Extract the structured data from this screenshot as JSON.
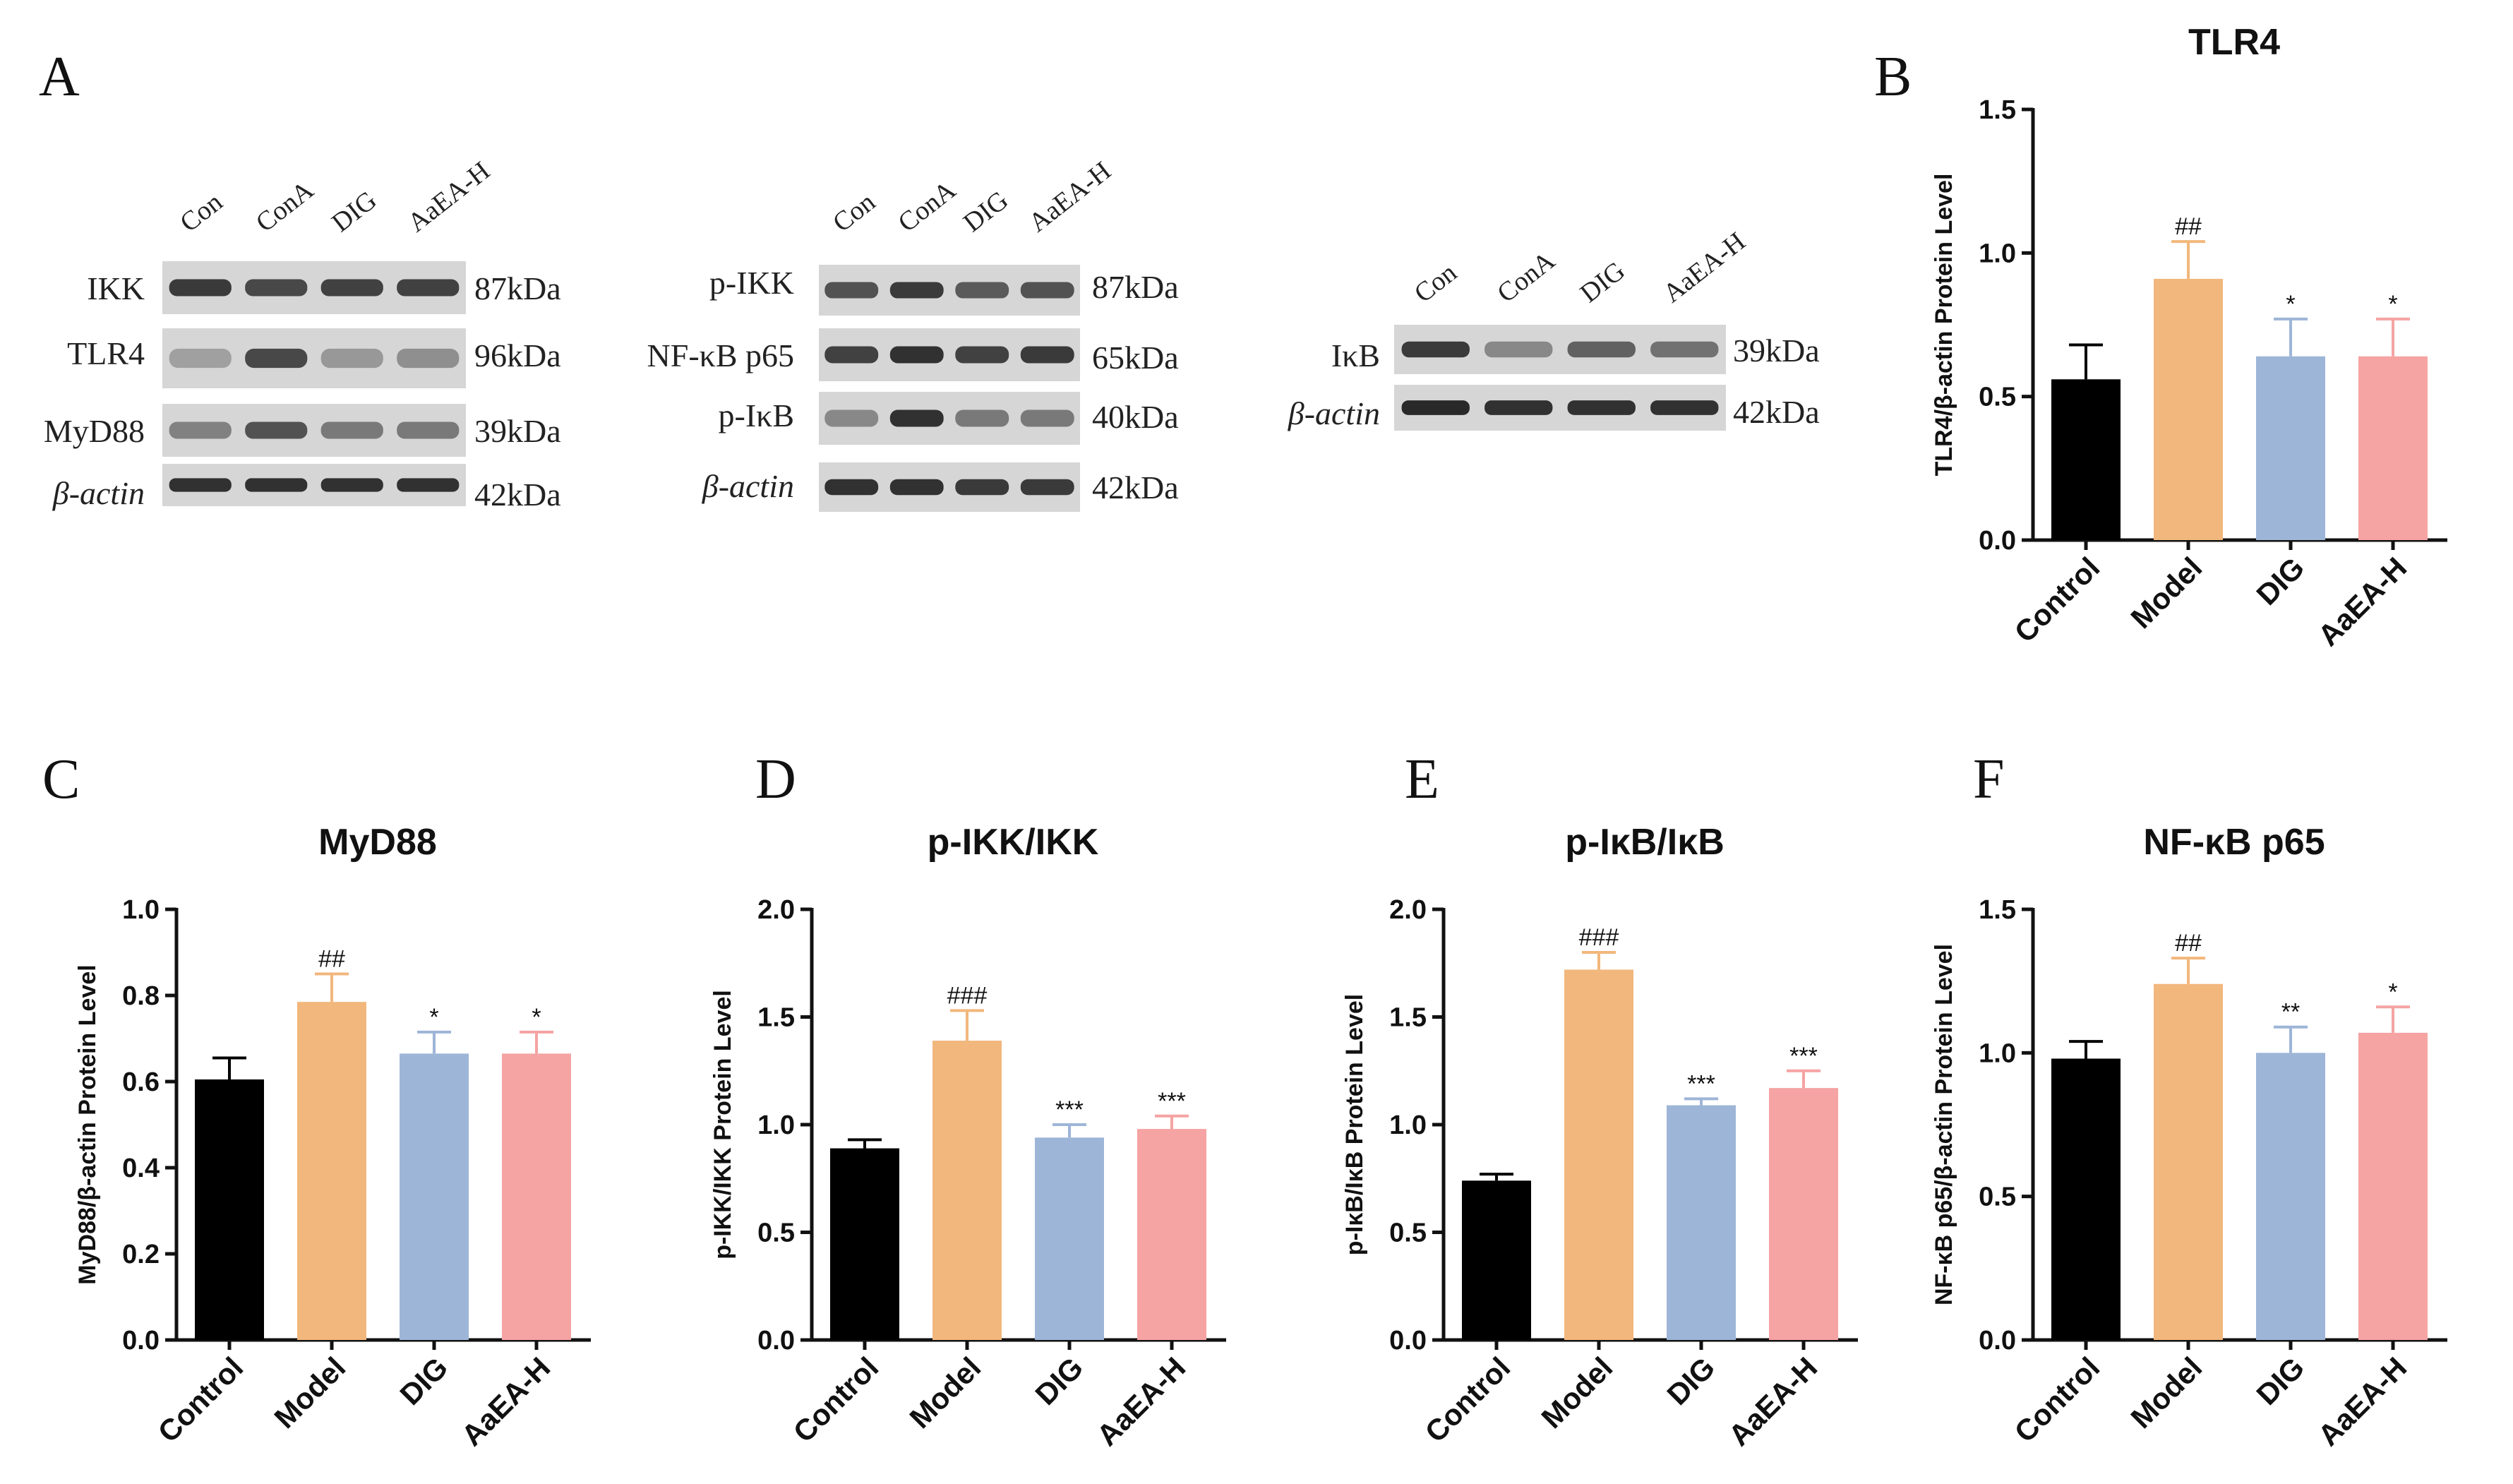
{
  "figure": {
    "panel_letters": [
      "A",
      "B",
      "C",
      "D",
      "E",
      "F"
    ]
  },
  "colors": {
    "Control": "#000000",
    "Model": "#F2B77C",
    "DIG": "#9DB5D7",
    "AaEA-H": "#F5A3A3",
    "blot_bg": "#d6d6d6",
    "band": "#1c1c1c"
  },
  "blots": [
    {
      "group": 1,
      "lanes": [
        "Con",
        "ConA",
        "DIG",
        "AaEA-H"
      ],
      "rows": [
        {
          "protein": "IKK",
          "kda": "87kDa",
          "intensity": [
            0.85,
            0.75,
            0.8,
            0.8
          ]
        },
        {
          "protein": "TLR4",
          "kda": "96kDa",
          "intensity": [
            0.2,
            0.75,
            0.25,
            0.3
          ]
        },
        {
          "protein": "MyD88",
          "kda": "39kDa",
          "intensity": [
            0.4,
            0.7,
            0.45,
            0.45
          ]
        },
        {
          "protein": "β-actin",
          "kda": "42kDa",
          "intensity": [
            0.9,
            0.9,
            0.9,
            0.9
          ]
        }
      ]
    },
    {
      "group": 2,
      "lanes": [
        "Con",
        "ConA",
        "DIG",
        "AaEA-H"
      ],
      "rows": [
        {
          "protein": "p-IKK",
          "kda": "87kDa",
          "intensity": [
            0.7,
            0.85,
            0.65,
            0.7
          ]
        },
        {
          "protein": "NF-κB p65",
          "kda": "65kDa",
          "intensity": [
            0.8,
            0.9,
            0.8,
            0.85
          ]
        },
        {
          "protein": "p-IκB",
          "kda": "40kDa",
          "intensity": [
            0.35,
            0.9,
            0.45,
            0.45
          ]
        },
        {
          "protein": "β-actin",
          "kda": "42kDa",
          "intensity": [
            0.9,
            0.9,
            0.85,
            0.85
          ]
        }
      ]
    },
    {
      "group": 3,
      "lanes": [
        "Con",
        "ConA",
        "DIG",
        "AaEA-H"
      ],
      "rows": [
        {
          "protein": "IκB",
          "kda": "39kDa",
          "intensity": [
            0.85,
            0.35,
            0.6,
            0.5
          ]
        },
        {
          "protein": "β-actin",
          "kda": "42kDa",
          "intensity": [
            0.95,
            0.9,
            0.9,
            0.9
          ]
        }
      ]
    }
  ],
  "chart_data": [
    {
      "panel": "B",
      "type": "bar",
      "title": "TLR4",
      "ylabel": "TLR4/β-actin Protein Level",
      "categories": [
        "Control",
        "Model",
        "DIG",
        "AaEA-H"
      ],
      "values": [
        0.56,
        0.91,
        0.64,
        0.64
      ],
      "errors": [
        0.12,
        0.13,
        0.13,
        0.13
      ],
      "annotations": [
        "",
        "##",
        "*",
        "*"
      ],
      "ylim": [
        0,
        1.5
      ],
      "yticks": [
        0.0,
        0.5,
        1.0,
        1.5
      ],
      "ytick_labels": [
        "0.0",
        "0.5",
        "1.0",
        "1.5"
      ]
    },
    {
      "panel": "C",
      "type": "bar",
      "title": "MyD88",
      "ylabel": "MyD88/β-actin Protein Level",
      "categories": [
        "Control",
        "Model",
        "DIG",
        "AaEA-H"
      ],
      "values": [
        0.605,
        0.785,
        0.665,
        0.665
      ],
      "errors": [
        0.05,
        0.065,
        0.05,
        0.05
      ],
      "annotations": [
        "",
        "##",
        "*",
        "*"
      ],
      "ylim": [
        0,
        1.0
      ],
      "yticks": [
        0.0,
        0.2,
        0.4,
        0.6,
        0.8,
        1.0
      ],
      "ytick_labels": [
        "0.0",
        "0.2",
        "0.4",
        "0.6",
        "0.8",
        "1.0"
      ]
    },
    {
      "panel": "D",
      "type": "bar",
      "title": "p-IKK/IKK",
      "ylabel": "p-IKK/IKK Protein Level",
      "categories": [
        "Control",
        "Model",
        "DIG",
        "AaEA-H"
      ],
      "values": [
        0.89,
        1.39,
        0.94,
        0.98
      ],
      "errors": [
        0.04,
        0.14,
        0.06,
        0.06
      ],
      "annotations": [
        "",
        "###",
        "***",
        "***"
      ],
      "ylim": [
        0,
        2.0
      ],
      "yticks": [
        0.0,
        0.5,
        1.0,
        1.5,
        2.0
      ],
      "ytick_labels": [
        "0.0",
        "0.5",
        "1.0",
        "1.5",
        "2.0"
      ]
    },
    {
      "panel": "E",
      "type": "bar",
      "title": "p-IκB/IκB",
      "ylabel": "p-IκB/IκB Protein Level",
      "categories": [
        "Control",
        "Model",
        "DIG",
        "AaEA-H"
      ],
      "values": [
        0.74,
        1.72,
        1.09,
        1.17
      ],
      "errors": [
        0.03,
        0.08,
        0.03,
        0.08
      ],
      "annotations": [
        "",
        "###",
        "***",
        "***"
      ],
      "ylim": [
        0,
        2.0
      ],
      "yticks": [
        0.0,
        0.5,
        1.0,
        1.5,
        2.0
      ],
      "ytick_labels": [
        "0.0",
        "0.5",
        "1.0",
        "1.5",
        "2.0"
      ]
    },
    {
      "panel": "F",
      "type": "bar",
      "title": "NF-κB p65",
      "ylabel": "NF-κB p65/β-actin Protein Level",
      "categories": [
        "Control",
        "Model",
        "DIG",
        "AaEA-H"
      ],
      "values": [
        0.98,
        1.24,
        1.0,
        1.07
      ],
      "errors": [
        0.06,
        0.09,
        0.09,
        0.09
      ],
      "annotations": [
        "",
        "##",
        "**",
        "*"
      ],
      "ylim": [
        0,
        1.5
      ],
      "yticks": [
        0.0,
        0.5,
        1.0,
        1.5
      ],
      "ytick_labels": [
        "0.0",
        "0.5",
        "1.0",
        "1.5"
      ]
    }
  ]
}
